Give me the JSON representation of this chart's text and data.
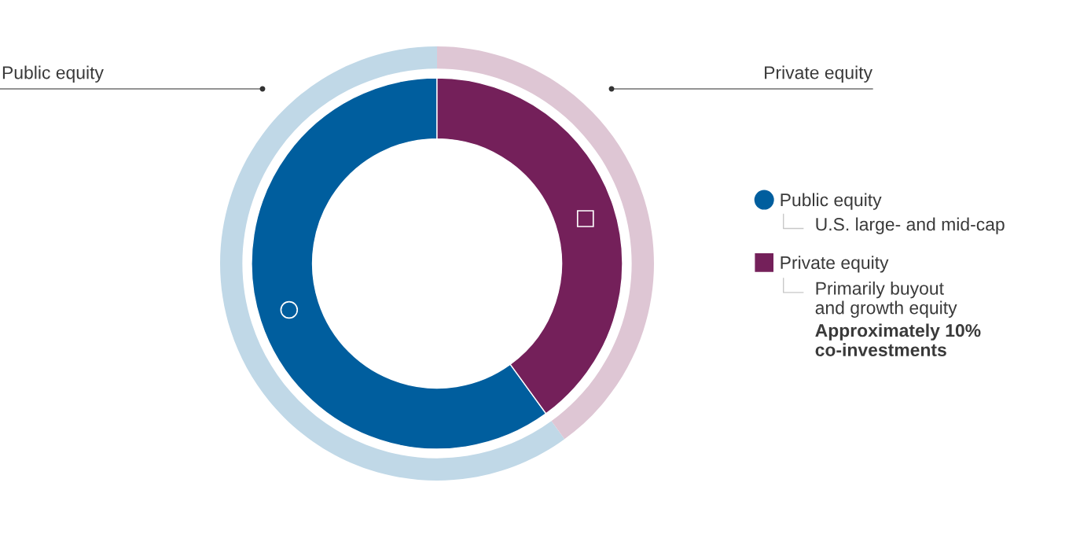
{
  "chart_data": {
    "type": "donut",
    "categories": [
      "Public equity",
      "Private equity"
    ],
    "series": [
      {
        "values": [
          60,
          40
        ],
        "colors": [
          "#c0d8e7",
          "#dec6d4"
        ]
      },
      {
        "values": [
          60,
          40
        ],
        "colors": [
          "#005e9e",
          "#74205a"
        ]
      }
    ],
    "legend": "right",
    "annotations": [
      "U.S. large- and mid-cap",
      "Primarily buyout\nand growth equity",
      "Approximately 10%\nco-investments"
    ]
  }
}
